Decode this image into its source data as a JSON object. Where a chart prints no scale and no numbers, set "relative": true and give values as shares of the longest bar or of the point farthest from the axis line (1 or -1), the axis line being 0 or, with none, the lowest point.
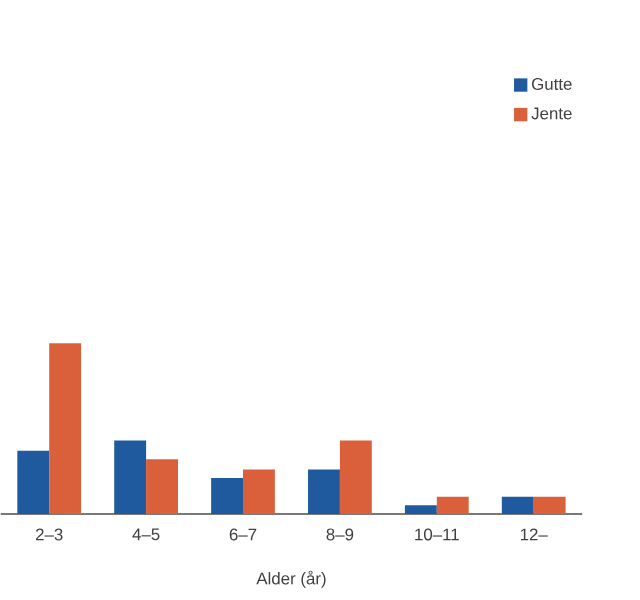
{
  "chart_data": {
    "type": "bar",
    "relative": true,
    "xlabel": "Alder (år)",
    "legend": "top right",
    "categories": [
      "2–3",
      "4–5",
      "6–7",
      "8–9",
      "10–11",
      "12–"
    ],
    "series": [
      {
        "name": "Gutte",
        "color": "#1f5a9e",
        "values": [
          0.37,
          0.43,
          0.21,
          0.26,
          0.05,
          0.1
        ]
      },
      {
        "name": "Jente",
        "color": "#d9603b",
        "values": [
          1.0,
          0.32,
          0.26,
          0.43,
          0.1,
          0.1
        ]
      }
    ]
  }
}
